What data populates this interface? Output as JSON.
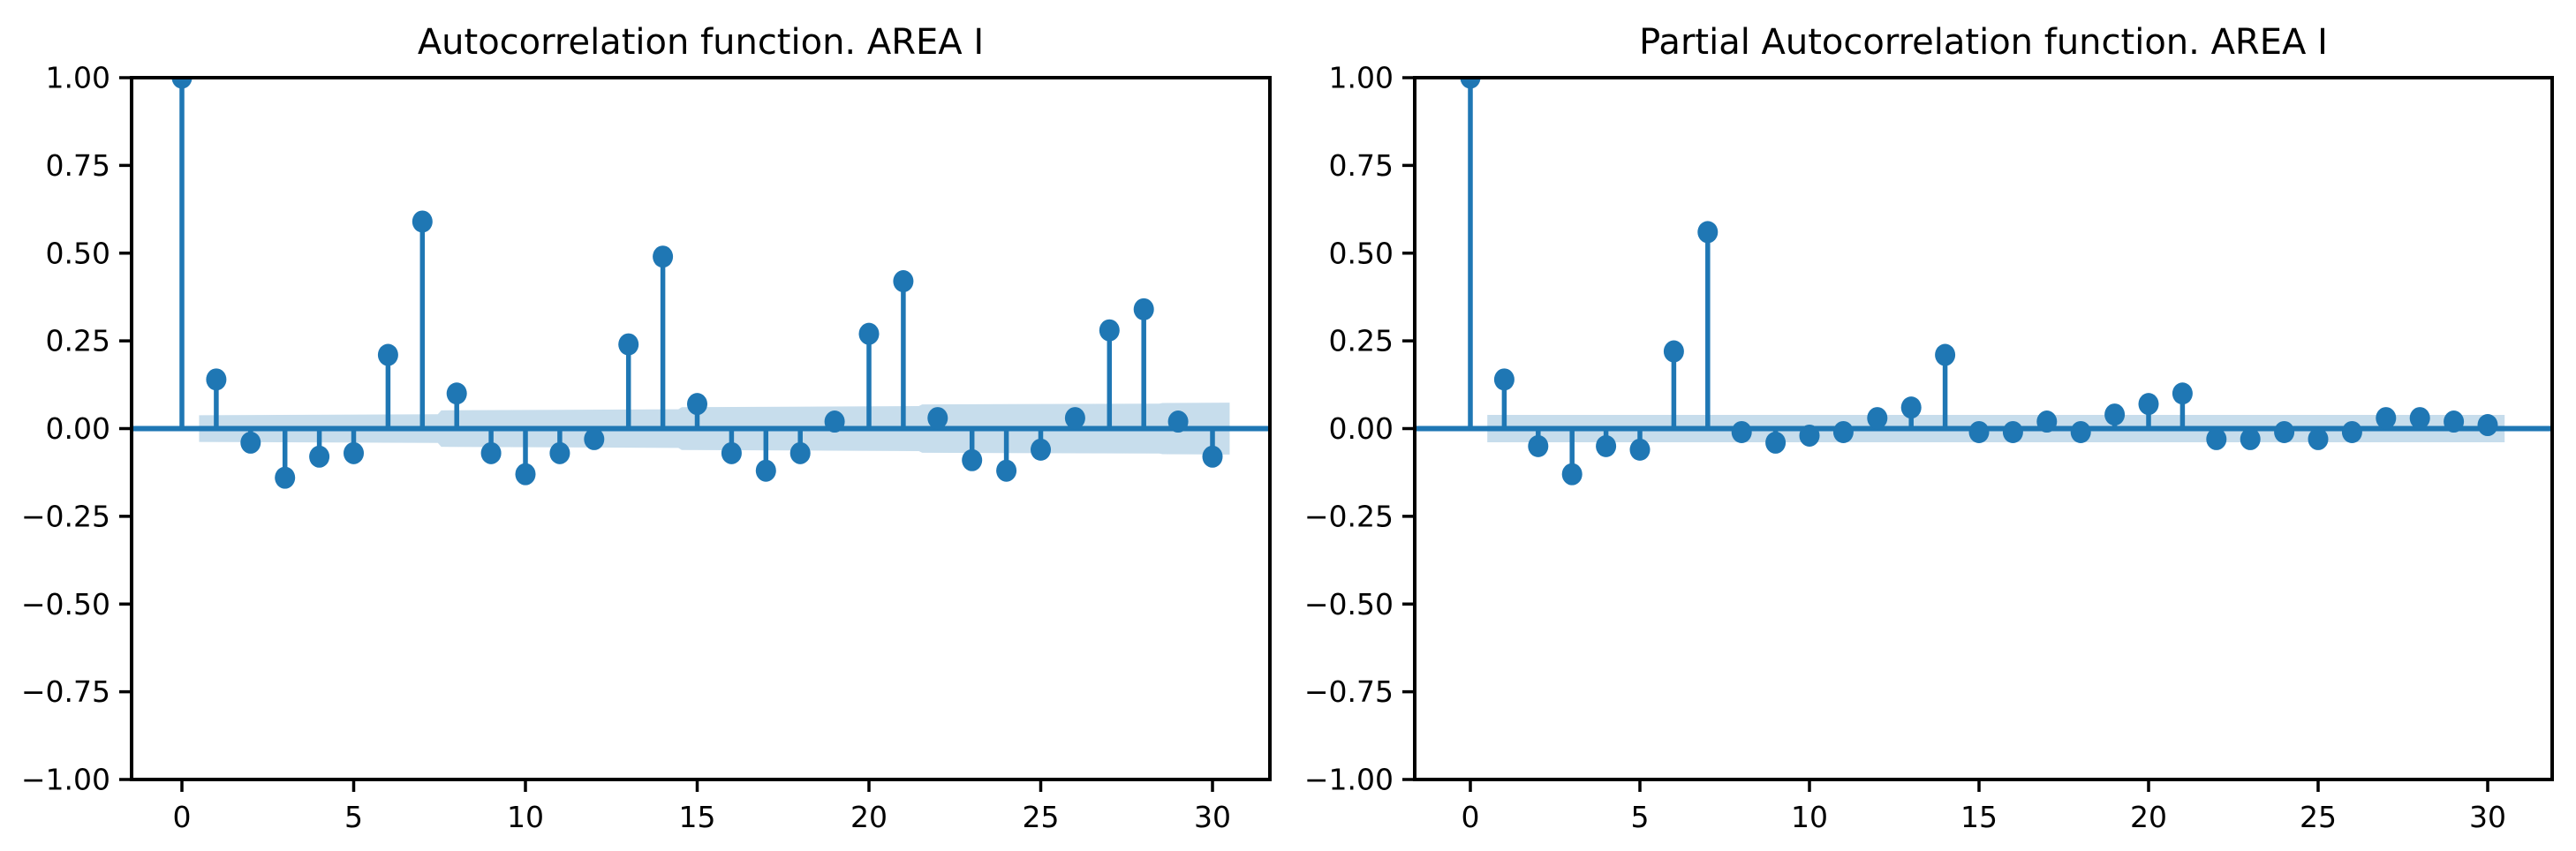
{
  "page": {
    "background": "#ffffff"
  },
  "colors": {
    "stem": "#1f77b4",
    "marker": "#1f77b4",
    "zero_line": "#1f77b4",
    "band_fill": "rgba(31,119,180,0.25)",
    "axis": "#000000",
    "text": "#000000"
  },
  "chart_data": [
    {
      "type": "stem",
      "title": "Autocorrelation function. AREA I",
      "xlabel": "",
      "ylabel": "",
      "xlim": [
        -1.5,
        31.6
      ],
      "ylim": [
        -1.0,
        1.0
      ],
      "grid": false,
      "legend": null,
      "xticks": [
        0,
        5,
        10,
        15,
        20,
        25,
        30
      ],
      "yticks": [
        1.0,
        0.75,
        0.5,
        0.25,
        0.0,
        -0.25,
        -0.5,
        -0.75,
        -1.0
      ],
      "ytick_labels": [
        "1.00",
        "0.75",
        "0.50",
        "0.25",
        "0.00",
        "−0.25",
        "−0.50",
        "−0.75",
        "−1.00"
      ],
      "lags": [
        0,
        1,
        2,
        3,
        4,
        5,
        6,
        7,
        8,
        9,
        10,
        11,
        12,
        13,
        14,
        15,
        16,
        17,
        18,
        19,
        20,
        21,
        22,
        23,
        24,
        25,
        26,
        27,
        28,
        29,
        30
      ],
      "values": [
        1.0,
        0.14,
        -0.04,
        -0.14,
        -0.08,
        -0.07,
        0.21,
        0.59,
        0.1,
        -0.07,
        -0.13,
        -0.07,
        -0.03,
        0.24,
        0.49,
        0.07,
        -0.07,
        -0.12,
        -0.07,
        0.02,
        0.27,
        0.42,
        0.03,
        -0.09,
        -0.12,
        -0.06,
        0.03,
        0.28,
        0.34,
        0.02,
        -0.08
      ],
      "confidence_band": {
        "centered_on": 0,
        "lag_halfwidth": [
          [
            0.5,
            0.038
          ],
          [
            7.45,
            0.041
          ],
          [
            7.55,
            0.052
          ],
          [
            14.45,
            0.055
          ],
          [
            14.55,
            0.061
          ],
          [
            21.45,
            0.064
          ],
          [
            21.55,
            0.069
          ],
          [
            28.45,
            0.071
          ],
          [
            28.55,
            0.073
          ],
          [
            30.5,
            0.074
          ]
        ]
      }
    },
    {
      "type": "stem",
      "title": "Partial Autocorrelation function. AREA I",
      "xlabel": "",
      "ylabel": "",
      "xlim": [
        -1.5,
        31.6
      ],
      "ylim": [
        -1.0,
        1.0
      ],
      "grid": false,
      "legend": null,
      "xticks": [
        0,
        5,
        10,
        15,
        20,
        25,
        30
      ],
      "yticks": [
        1.0,
        0.75,
        0.5,
        0.25,
        0.0,
        -0.25,
        -0.5,
        -0.75,
        -1.0
      ],
      "ytick_labels": [
        "1.00",
        "0.75",
        "0.50",
        "0.25",
        "0.00",
        "−0.25",
        "−0.50",
        "−0.75",
        "−1.00"
      ],
      "lags": [
        0,
        1,
        2,
        3,
        4,
        5,
        6,
        7,
        8,
        9,
        10,
        11,
        12,
        13,
        14,
        15,
        16,
        17,
        18,
        19,
        20,
        21,
        22,
        23,
        24,
        25,
        26,
        27,
        28,
        29,
        30
      ],
      "values": [
        1.0,
        0.14,
        -0.05,
        -0.13,
        -0.05,
        -0.06,
        0.22,
        0.56,
        -0.01,
        -0.04,
        -0.02,
        -0.01,
        0.03,
        0.06,
        0.21,
        -0.01,
        -0.01,
        0.02,
        -0.01,
        0.04,
        0.07,
        0.1,
        -0.03,
        -0.03,
        -0.01,
        -0.03,
        -0.01,
        0.03,
        0.03,
        0.02,
        0.01
      ],
      "confidence_band": {
        "centered_on": 0,
        "lag_halfwidth": [
          [
            0.5,
            0.039
          ],
          [
            30.5,
            0.039
          ]
        ]
      }
    }
  ]
}
